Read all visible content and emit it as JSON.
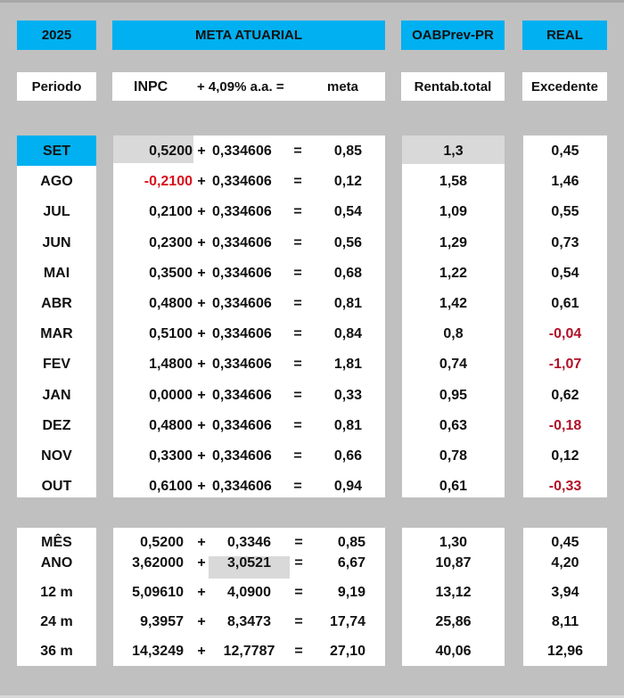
{
  "colors": {
    "background": "#c0c0c0",
    "header_blue": "#00b0f0",
    "highlight_gray": "#d9d9d9",
    "negative_red": "#d8101c"
  },
  "header": {
    "year": "2025",
    "meta_title": "META ATUARIAL",
    "oabprev_title": "OABPrev-PR",
    "real_title": "REAL"
  },
  "subheader": {
    "periodo": "Periodo",
    "inpc": "INPC",
    "plus_rate": "+ 4,09% a.a. =",
    "meta": "meta",
    "rentab": "Rentab.total",
    "excedente": "Excedente"
  },
  "months": [
    {
      "period": "SET",
      "inpc": "0,5200",
      "plus": "+",
      "rate": "0,334606",
      "eq": "=",
      "meta": "0,85",
      "rentab": "1,3",
      "excedente": "0,45"
    },
    {
      "period": "AGO",
      "inpc": "-0,2100",
      "plus": "+",
      "rate": "0,334606",
      "eq": "=",
      "meta": "0,12",
      "rentab": "1,58",
      "excedente": "1,46"
    },
    {
      "period": "JUL",
      "inpc": "0,2100",
      "plus": "+",
      "rate": "0,334606",
      "eq": "=",
      "meta": "0,54",
      "rentab": "1,09",
      "excedente": "0,55"
    },
    {
      "period": "JUN",
      "inpc": "0,2300",
      "plus": "+",
      "rate": "0,334606",
      "eq": "=",
      "meta": "0,56",
      "rentab": "1,29",
      "excedente": "0,73"
    },
    {
      "period": "MAI",
      "inpc": "0,3500",
      "plus": "+",
      "rate": "0,334606",
      "eq": "=",
      "meta": "0,68",
      "rentab": "1,22",
      "excedente": "0,54"
    },
    {
      "period": "ABR",
      "inpc": "0,4800",
      "plus": "+",
      "rate": "0,334606",
      "eq": "=",
      "meta": "0,81",
      "rentab": "1,42",
      "excedente": "0,61"
    },
    {
      "period": "MAR",
      "inpc": "0,5100",
      "plus": "+",
      "rate": "0,334606",
      "eq": "=",
      "meta": "0,84",
      "rentab": "0,8",
      "excedente": "-0,04"
    },
    {
      "period": "FEV",
      "inpc": "1,4800",
      "plus": "+",
      "rate": "0,334606",
      "eq": "=",
      "meta": "1,81",
      "rentab": "0,74",
      "excedente": "-1,07"
    },
    {
      "period": "JAN",
      "inpc": "0,0000",
      "plus": "+",
      "rate": "0,334606",
      "eq": "=",
      "meta": "0,33",
      "rentab": "0,95",
      "excedente": "0,62"
    },
    {
      "period": "DEZ",
      "inpc": "0,4800",
      "plus": "+",
      "rate": "0,334606",
      "eq": "=",
      "meta": "0,81",
      "rentab": "0,63",
      "excedente": "-0,18"
    },
    {
      "period": "NOV",
      "inpc": "0,3300",
      "plus": "+",
      "rate": "0,334606",
      "eq": "=",
      "meta": "0,66",
      "rentab": "0,78",
      "excedente": "0,12"
    },
    {
      "period": "OUT",
      "inpc": "0,6100",
      "plus": "+",
      "rate": "0,334606",
      "eq": "=",
      "meta": "0,94",
      "rentab": "0,61",
      "excedente": "-0,33"
    }
  ],
  "summary": [
    {
      "period": "MÊS",
      "inpc": "0,5200",
      "plus": "+",
      "rate": "0,3346",
      "eq": "=",
      "meta": "0,85",
      "rentab": "1,30",
      "excedente": "0,45"
    },
    {
      "period": "ANO",
      "inpc": "3,62000",
      "plus": "+",
      "rate": "3,0521",
      "eq": "=",
      "meta": "6,67",
      "rentab": "10,87",
      "excedente": "4,20"
    },
    {
      "period": "12 m",
      "inpc": "5,09610",
      "plus": "+",
      "rate": "4,0900",
      "eq": "=",
      "meta": "9,19",
      "rentab": "13,12",
      "excedente": "3,94"
    },
    {
      "period": "24 m",
      "inpc": "9,3957",
      "plus": "+",
      "rate": "8,3473",
      "eq": "=",
      "meta": "17,74",
      "rentab": "25,86",
      "excedente": "8,11"
    },
    {
      "period": "36 m",
      "inpc": "14,3249",
      "plus": "+",
      "rate": "12,7787",
      "eq": "=",
      "meta": "27,10",
      "rentab": "40,06",
      "excedente": "12,96"
    }
  ]
}
